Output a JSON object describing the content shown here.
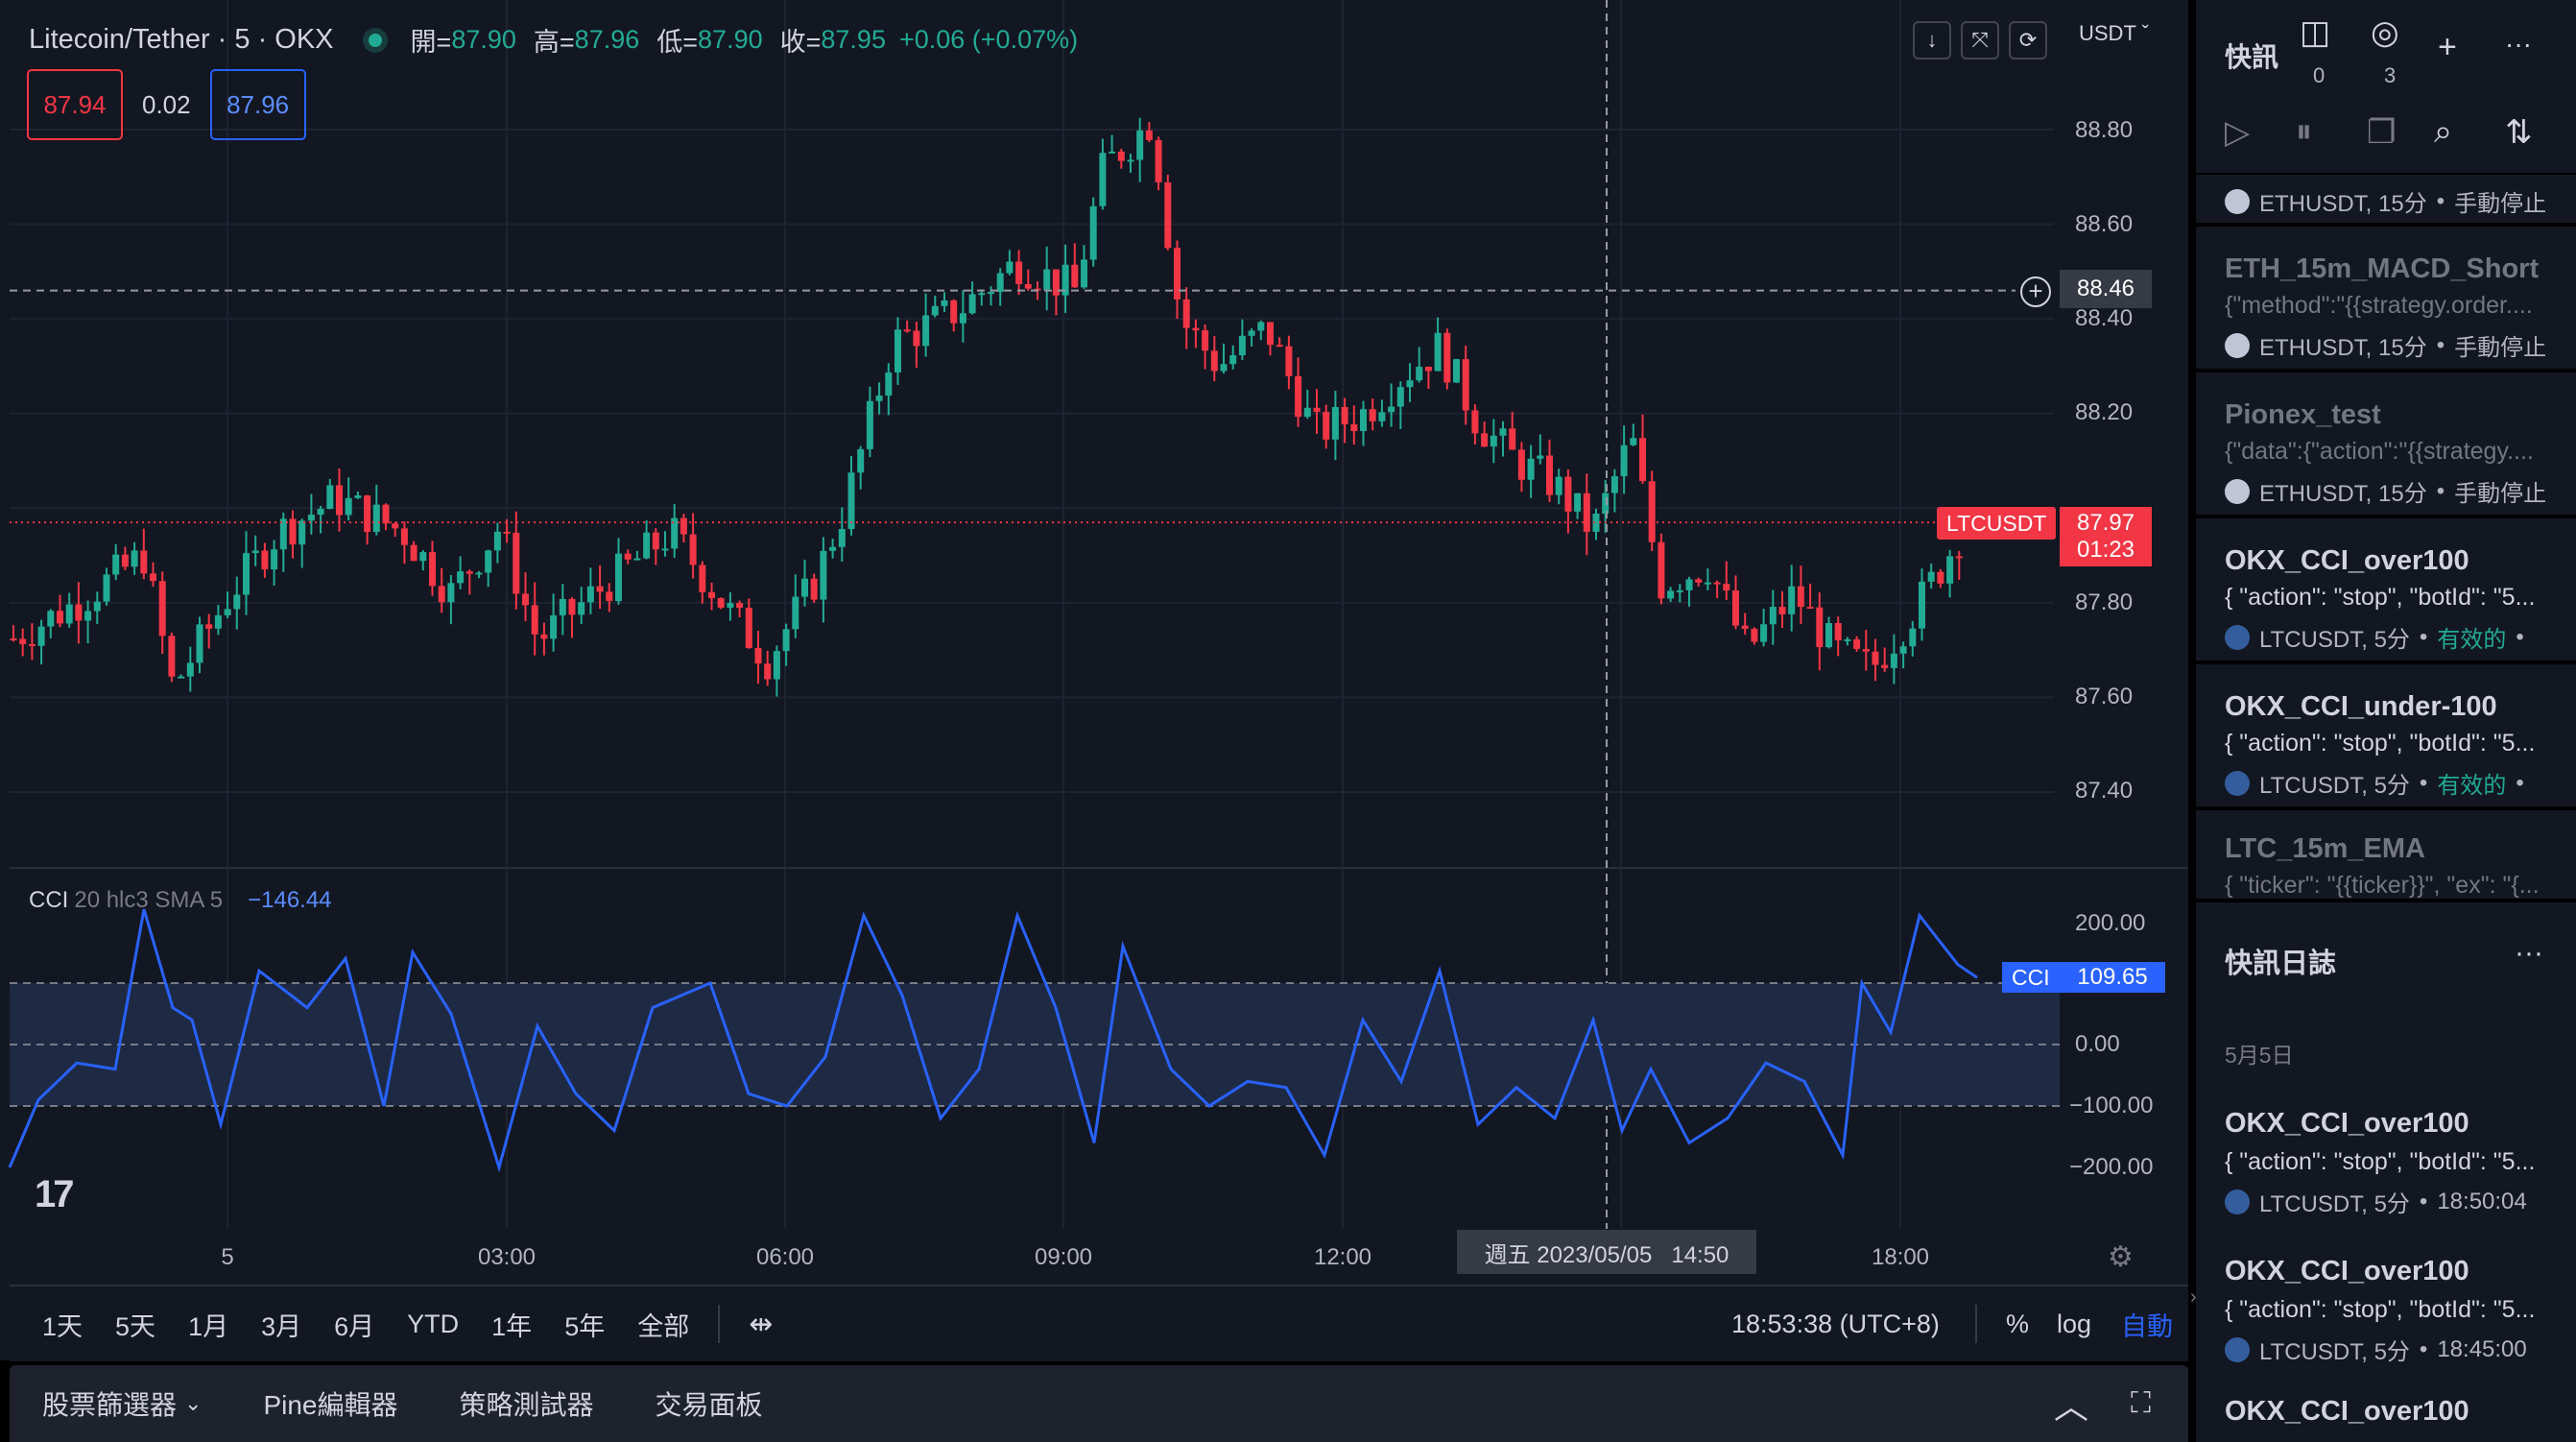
{
  "legend": {
    "symbol": "Litecoin/Tether · 5 · OKX",
    "open_k": "開=",
    "open_v": "87.90",
    "high_k": "高=",
    "high_v": "87.96",
    "low_k": "低=",
    "low_v": "87.90",
    "close_k": "收=",
    "close_v": "87.95",
    "change": "+0.06 (+0.07%)"
  },
  "quote": {
    "bid": "87.94",
    "spread": "0.02",
    "ask": "87.96"
  },
  "currency": "USDT",
  "icons": {
    "arrow_down": "down-arrow-icon",
    "collapse": "collapse-icon",
    "refresh": "refresh-icon",
    "settings": "gear-icon"
  },
  "price_axis": [
    "88.80",
    "88.60",
    "88.40",
    "88.20",
    "87.80",
    "87.60",
    "87.40"
  ],
  "crosshair_price": "88.46",
  "last_price": {
    "symbol": "LTCUSDT",
    "price": "87.97",
    "countdown": "01:23"
  },
  "cci": {
    "name": "CCI",
    "params": "20 hlc3 SMA 5",
    "value": "−146.44",
    "tag": "CCI",
    "tag_value": "109.65",
    "axis": [
      "200.00",
      "0.00",
      "−100.00",
      "−200.00"
    ]
  },
  "time_axis": [
    "5",
    "03:00",
    "06:00",
    "09:00",
    "12:00",
    "18:00"
  ],
  "crosshair_time": "週五 2023/05/05   14:50",
  "range_bar": {
    "ranges": [
      "1天",
      "5天",
      "1月",
      "3月",
      "6月",
      "YTD",
      "1年",
      "5年",
      "全部"
    ],
    "clock": "18:53:38 (UTC+8)",
    "pct": "%",
    "log": "log",
    "auto": "自動"
  },
  "bottom_tabs": [
    "股票篩選器",
    "Pine編輯器",
    "策略測試器",
    "交易面板"
  ],
  "right_panel": {
    "title": "快訊",
    "alert_count": "0",
    "log_count": "3",
    "alerts": [
      {
        "name": "",
        "desc": "",
        "symbol": "ETHUSDT, 15分",
        "status": "手動停止",
        "active": false
      },
      {
        "name": "ETH_15m_MACD_Short",
        "desc": "{\"method\":\"{{strategy.order....",
        "symbol": "ETHUSDT, 15分",
        "status": "手動停止",
        "active": false
      },
      {
        "name": "Pionex_test",
        "desc": "{\"data\":{\"action\":\"{{strategy....",
        "symbol": "ETHUSDT, 15分",
        "status": "手動停止",
        "active": false
      },
      {
        "name": "OKX_CCI_over100",
        "desc": "{ \"action\": \"stop\", \"botId\": \"5...",
        "symbol": "LTCUSDT, 5分",
        "status": "有效的",
        "active": true
      },
      {
        "name": "OKX_CCI_under-100",
        "desc": "{ \"action\": \"stop\", \"botId\": \"5...",
        "symbol": "LTCUSDT, 5分",
        "status": "有效的",
        "active": true
      },
      {
        "name": "LTC_15m_EMA",
        "desc": "{ \"ticker\": \"{{ticker}}\", \"ex\": \"{...",
        "symbol": "",
        "status": "",
        "active": false
      }
    ],
    "log_title": "快訊日誌",
    "log_date": "5月5日",
    "log_items": [
      {
        "name": "OKX_CCI_over100",
        "desc": "{ \"action\": \"stop\", \"botId\": \"5...",
        "symbol": "LTCUSDT, 5分",
        "time": "18:50:04"
      },
      {
        "name": "OKX_CCI_over100",
        "desc": "{ \"action\": \"stop\", \"botId\": \"5...",
        "symbol": "LTCUSDT, 5分",
        "time": "18:45:00"
      },
      {
        "name": "OKX_CCI_over100",
        "desc": "",
        "symbol": "",
        "time": ""
      }
    ]
  },
  "colors": {
    "bg": "#131722",
    "up": "#22ab94",
    "down": "#f23645",
    "cci": "#2962ff",
    "accent": "#2962ff"
  }
}
